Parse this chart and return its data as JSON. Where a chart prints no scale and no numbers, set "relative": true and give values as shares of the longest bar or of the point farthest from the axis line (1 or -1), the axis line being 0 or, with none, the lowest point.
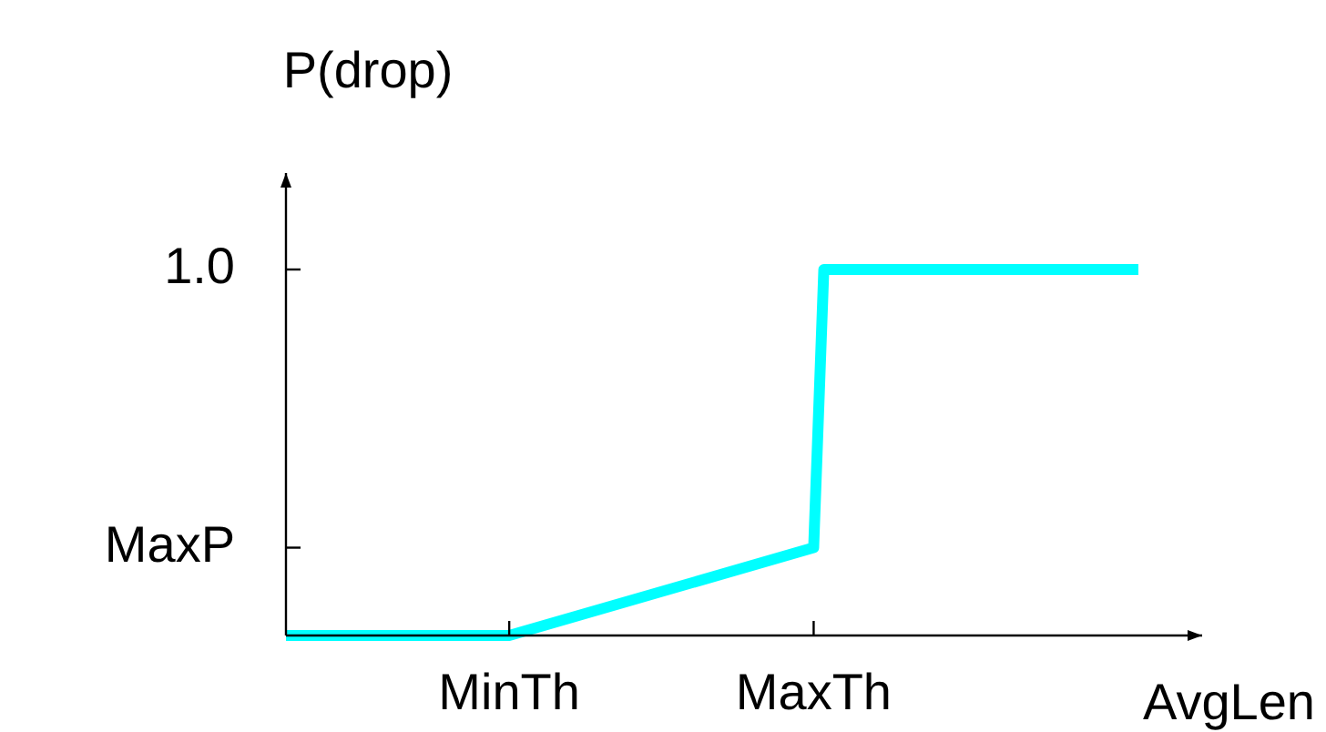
{
  "chart_data": {
    "type": "line",
    "relative": true,
    "ylabel": "P(drop)",
    "xlabel": "AvgLen",
    "categories": [
      null,
      null,
      null,
      null,
      null,
      null,
      null,
      null,
      null,
      null,
      null,
      null,
      null,
      null,
      null,
      null,
      null,
      null,
      null,
      null,
      null,
      null,
      "MinTh",
      null,
      null,
      null,
      null,
      null,
      null,
      null,
      null,
      null,
      null,
      null,
      null,
      null,
      null,
      null,
      null,
      null,
      null,
      null,
      null,
      null,
      null,
      null,
      null,
      null,
      null,
      null,
      null,
      null,
      "MaxTh",
      null,
      null,
      null,
      null,
      null,
      null,
      null,
      null,
      null,
      null,
      null,
      null,
      null,
      null,
      null,
      null,
      null,
      null,
      null,
      null,
      null,
      null,
      null,
      null,
      null,
      null,
      null,
      null,
      null,
      null,
      null,
      null
    ],
    "series": [
      {
        "color": "#00ffff",
        "values": [
          0,
          null,
          null,
          null,
          null,
          null,
          null,
          null,
          null,
          null,
          null,
          null,
          null,
          null,
          null,
          null,
          null,
          null,
          null,
          null,
          null,
          null,
          0,
          null,
          null,
          null,
          null,
          null,
          null,
          null,
          null,
          null,
          null,
          null,
          null,
          null,
          null,
          null,
          null,
          null,
          null,
          null,
          null,
          null,
          null,
          null,
          null,
          null,
          null,
          null,
          null,
          null,
          0.24,
          1,
          null,
          null,
          null,
          null,
          null,
          null,
          null,
          null,
          null,
          null,
          null,
          null,
          null,
          null,
          null,
          null,
          null,
          null,
          null,
          null,
          null,
          null,
          null,
          null,
          null,
          null,
          null,
          null,
          null,
          null,
          1
        ]
      }
    ],
    "annotations": [
      "MaxP",
      "1.0"
    ],
    "legend": false,
    "marker": "none",
    "line_style": "solid"
  }
}
